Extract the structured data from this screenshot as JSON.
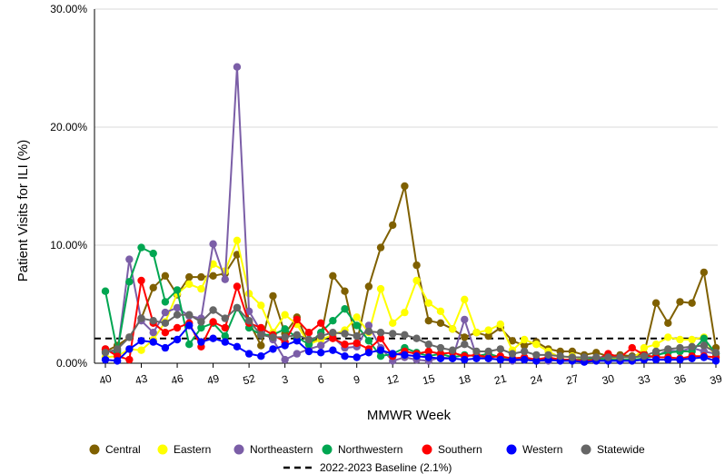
{
  "chart_data": {
    "type": "line",
    "title": "",
    "xlabel": "MMWR Week",
    "ylabel": "Patient Visits for ILI (%)",
    "ylim": [
      0,
      30
    ],
    "y_tick_labels": [
      "0.00%",
      "10.00%",
      "20.00%",
      "30.00%"
    ],
    "x_tick_labels": [
      "40",
      "43",
      "46",
      "49",
      "52",
      "3",
      "6",
      "9",
      "12",
      "15",
      "18",
      "21",
      "24",
      "27",
      "30",
      "33",
      "36",
      "39"
    ],
    "x_weeks": [
      "40",
      "41",
      "42",
      "43",
      "44",
      "45",
      "46",
      "47",
      "48",
      "49",
      "50",
      "51",
      "52",
      "1",
      "2",
      "3",
      "4",
      "5",
      "6",
      "7",
      "8",
      "9",
      "10",
      "11",
      "12",
      "13",
      "14",
      "15",
      "16",
      "17",
      "18",
      "19",
      "20",
      "21",
      "22",
      "23",
      "24",
      "25",
      "26",
      "27",
      "28",
      "29",
      "30",
      "31",
      "32",
      "33",
      "34",
      "35",
      "36",
      "37",
      "38",
      "39"
    ],
    "grid": "horizontal",
    "legend_position": "bottom",
    "series": [
      {
        "name": "Central",
        "color": "#7f6000",
        "values": [
          1.0,
          1.5,
          2.2,
          3.8,
          6.4,
          7.4,
          5.8,
          7.3,
          7.3,
          7.4,
          7.6,
          9.2,
          3.5,
          1.5,
          5.7,
          2.5,
          3.9,
          1.6,
          2.2,
          7.4,
          6.1,
          1.7,
          6.5,
          9.8,
          11.7,
          15.0,
          8.3,
          3.6,
          3.4,
          2.9,
          2.2,
          2.6,
          2.3,
          3.0,
          1.9,
          1.5,
          1.8,
          1.2,
          1.0,
          1.0,
          0.7,
          0.9,
          0.6,
          0.7,
          0.6,
          0.8,
          5.1,
          3.4,
          5.2,
          5.1,
          7.7,
          1.3
        ]
      },
      {
        "name": "Eastern",
        "color": "#ffff00",
        "values": [
          0.5,
          0.6,
          1.2,
          1.1,
          2.0,
          3.5,
          5.9,
          6.7,
          6.3,
          8.4,
          7.8,
          10.4,
          5.9,
          4.9,
          2.6,
          4.1,
          3.3,
          1.6,
          2.0,
          2.4,
          2.8,
          3.9,
          2.6,
          6.3,
          3.4,
          4.3,
          7.0,
          5.1,
          4.4,
          2.9,
          5.4,
          2.6,
          2.8,
          3.3,
          1.1,
          2.0,
          1.6,
          1.0,
          0.5,
          0.6,
          0.3,
          0.4,
          0.4,
          0.3,
          0.3,
          1.3,
          1.6,
          2.2,
          2.0,
          2.0,
          2.2,
          0.5
        ]
      },
      {
        "name": "Northeastern",
        "color": "#7b5ea7",
        "values": [
          1.2,
          0.8,
          8.8,
          3.6,
          2.6,
          4.3,
          4.7,
          4.0,
          3.8,
          10.1,
          7.1,
          25.1,
          4.4,
          2.7,
          2.0,
          0.3,
          0.8,
          1.2,
          1.5,
          2.2,
          1.3,
          1.4,
          3.2,
          1.3,
          0.2,
          0.5,
          0.3,
          0.2,
          0.5,
          0.4,
          3.7,
          0.6,
          0.4,
          0.3,
          0.2,
          0.3,
          0.2,
          0.2,
          0.3,
          0.3,
          0.2,
          0.2,
          0.3,
          0.3,
          0.2,
          0.4,
          0.6,
          1.1,
          1.0,
          1.3,
          1.0,
          0.8
        ]
      },
      {
        "name": "Northwestern",
        "color": "#00a651",
        "values": [
          6.1,
          1.0,
          6.9,
          9.8,
          9.3,
          5.2,
          6.2,
          1.6,
          3.0,
          3.4,
          2.3,
          4.7,
          3.0,
          2.4,
          2.4,
          2.9,
          2.2,
          1.6,
          2.6,
          3.6,
          4.6,
          3.2,
          1.9,
          0.6,
          0.8,
          1.3,
          0.9,
          0.6,
          0.8,
          0.5,
          0.7,
          0.6,
          0.8,
          0.5,
          0.4,
          0.4,
          0.3,
          0.4,
          0.3,
          0.3,
          0.3,
          0.4,
          0.3,
          0.3,
          0.3,
          0.4,
          0.7,
          0.9,
          1.0,
          1.0,
          2.1,
          0.8
        ]
      },
      {
        "name": "Southern",
        "color": "#ff0000",
        "values": [
          1.2,
          0.6,
          0.3,
          7.0,
          3.4,
          2.6,
          3.0,
          3.4,
          1.4,
          3.5,
          3.0,
          6.5,
          3.4,
          3.0,
          2.4,
          1.8,
          3.7,
          2.6,
          3.4,
          2.1,
          1.6,
          1.7,
          1.2,
          2.1,
          0.6,
          1.0,
          0.8,
          1.0,
          0.8,
          0.9,
          0.6,
          0.7,
          0.5,
          0.6,
          0.4,
          0.5,
          0.3,
          0.5,
          0.3,
          0.3,
          0.2,
          0.3,
          0.8,
          0.5,
          1.3,
          0.7,
          0.5,
          0.5,
          0.4,
          0.6,
          0.6,
          0.5
        ]
      },
      {
        "name": "Western",
        "color": "#0000ff",
        "values": [
          0.3,
          0.2,
          1.2,
          1.9,
          1.8,
          1.3,
          2.0,
          3.2,
          1.8,
          2.1,
          1.8,
          1.4,
          0.8,
          0.6,
          1.2,
          1.5,
          1.9,
          1.0,
          0.9,
          1.1,
          0.6,
          0.5,
          0.9,
          1.1,
          0.8,
          0.7,
          0.6,
          0.5,
          0.4,
          0.4,
          0.3,
          0.4,
          0.4,
          0.3,
          0.3,
          0.3,
          0.2,
          0.3,
          0.2,
          0.2,
          0.1,
          0.2,
          0.2,
          0.2,
          0.2,
          0.3,
          0.3,
          0.3,
          0.3,
          0.4,
          0.5,
          0.2
        ]
      },
      {
        "name": "Statewide",
        "color": "#666666",
        "values": [
          0.9,
          1.2,
          2.2,
          3.8,
          3.6,
          3.4,
          4.1,
          4.1,
          3.5,
          4.5,
          3.8,
          4.7,
          3.6,
          2.4,
          2.2,
          2.2,
          2.4,
          2.0,
          2.3,
          2.6,
          2.5,
          2.3,
          2.7,
          2.6,
          2.5,
          2.4,
          2.1,
          1.6,
          1.3,
          1.1,
          1.6,
          1.0,
          1.0,
          1.2,
          0.8,
          1.0,
          0.7,
          0.7,
          0.6,
          0.5,
          0.5,
          0.5,
          0.5,
          0.5,
          0.5,
          0.6,
          1.0,
          1.2,
          1.3,
          1.4,
          1.5,
          0.9
        ]
      }
    ],
    "baseline": {
      "name": "2022-2023 Baseline (2.1%)",
      "value": 2.1,
      "color": "#000000"
    }
  }
}
